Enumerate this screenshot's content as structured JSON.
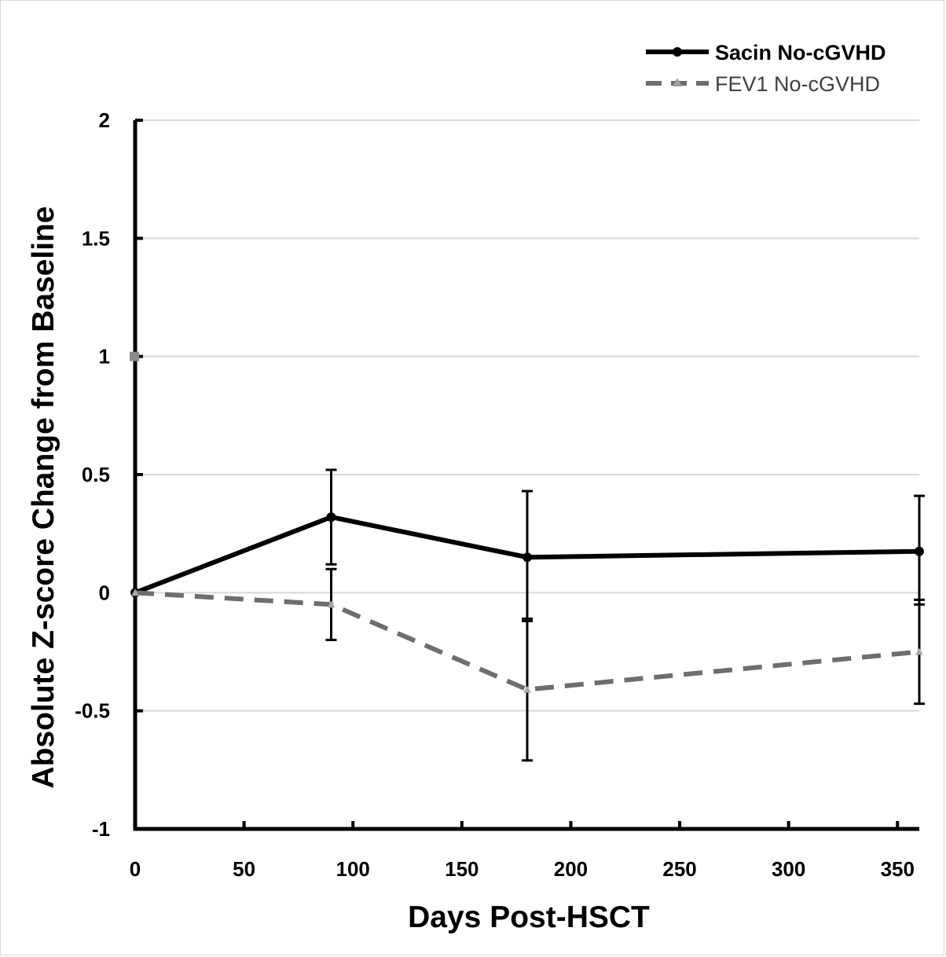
{
  "chart_data": {
    "type": "line",
    "xlabel": "Days Post-HSCT",
    "ylabel": "Absolute Z-score Change from Baseline",
    "xlim": [
      0,
      360
    ],
    "ylim": [
      -1,
      2
    ],
    "x_ticks": [
      0,
      50,
      100,
      150,
      200,
      250,
      300,
      350
    ],
    "y_ticks": [
      -1,
      -0.5,
      0,
      0.5,
      1,
      1.5,
      2
    ],
    "y_tick_labels": [
      "-1",
      "-0.5",
      "0",
      "0.5",
      "1",
      "1.5",
      "2"
    ],
    "grid": "horizontal",
    "legend_position": "top-right",
    "series": [
      {
        "name": "Sacin No-cGVHD",
        "color": "#000000",
        "style": "solid",
        "marker": "circle",
        "x": [
          0,
          90,
          180,
          360
        ],
        "y": [
          0,
          0.32,
          0.15,
          0.175
        ],
        "err_low": [
          0,
          0.12,
          -0.11,
          -0.05
        ],
        "err_high": [
          0,
          0.52,
          0.43,
          0.41
        ]
      },
      {
        "name": "FEV1 No-cGVHD",
        "color": "#6e6e6e",
        "style": "dashed",
        "marker": "triangle",
        "x": [
          0,
          90,
          180,
          360
        ],
        "y": [
          0,
          -0.05,
          -0.41,
          -0.25
        ],
        "err_low": [
          0,
          -0.2,
          -0.71,
          -0.47
        ],
        "err_high": [
          0,
          0.1,
          -0.12,
          -0.03
        ]
      }
    ]
  }
}
